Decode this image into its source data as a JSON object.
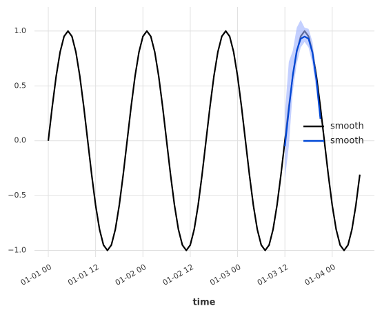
{
  "chart_data": {
    "type": "line",
    "x_label": "time",
    "x": [
      "01-01 00",
      "01-01 01",
      "01-01 02",
      "01-01 03",
      "01-01 04",
      "01-01 05",
      "01-01 06",
      "01-01 07",
      "01-01 08",
      "01-01 09",
      "01-01 10",
      "01-01 11",
      "01-01 12",
      "01-01 13",
      "01-01 14",
      "01-01 15",
      "01-01 16",
      "01-01 17",
      "01-01 18",
      "01-01 19",
      "01-01 20",
      "01-01 21",
      "01-01 22",
      "01-01 23",
      "01-02 00",
      "01-02 01",
      "01-02 02",
      "01-02 03",
      "01-02 04",
      "01-02 05",
      "01-02 06",
      "01-02 07",
      "01-02 08",
      "01-02 09",
      "01-02 10",
      "01-02 11",
      "01-02 12",
      "01-02 13",
      "01-02 14",
      "01-02 15",
      "01-02 16",
      "01-02 17",
      "01-02 18",
      "01-02 19",
      "01-02 20",
      "01-02 21",
      "01-02 22",
      "01-02 23",
      "01-03 00",
      "01-03 01",
      "01-03 02",
      "01-03 03",
      "01-03 04",
      "01-03 05",
      "01-03 06",
      "01-03 07",
      "01-03 08",
      "01-03 09",
      "01-03 10",
      "01-03 11",
      "01-03 12",
      "01-03 13",
      "01-03 14",
      "01-03 15",
      "01-03 16",
      "01-03 17",
      "01-03 18",
      "01-03 19",
      "01-03 20",
      "01-03 21",
      "01-03 22",
      "01-03 23",
      "01-04 00",
      "01-04 01",
      "01-04 02",
      "01-04 03",
      "01-04 04",
      "01-04 05",
      "01-04 06",
      "01-04 07"
    ],
    "series": [
      {
        "name": "smooth",
        "color": "#000000",
        "values": [
          0,
          0.309,
          0.588,
          0.809,
          0.951,
          1,
          0.951,
          0.809,
          0.588,
          0.309,
          0,
          -0.309,
          -0.588,
          -0.809,
          -0.951,
          -1,
          -0.951,
          -0.809,
          -0.588,
          -0.309,
          0,
          0.309,
          0.588,
          0.809,
          0.951,
          1,
          0.951,
          0.809,
          0.588,
          0.309,
          0,
          -0.309,
          -0.588,
          -0.809,
          -0.951,
          -1,
          -0.951,
          -0.809,
          -0.588,
          -0.309,
          0,
          0.309,
          0.588,
          0.809,
          0.951,
          1,
          0.951,
          0.809,
          0.588,
          0.309,
          0,
          -0.309,
          -0.588,
          -0.809,
          -0.951,
          -1,
          -0.951,
          -0.809,
          -0.588,
          -0.309,
          0,
          0.309,
          0.588,
          0.809,
          0.951,
          1,
          0.951,
          0.809,
          0.588,
          0.309,
          0,
          -0.309,
          -0.588,
          -0.809,
          -0.951,
          -1,
          -0.951,
          -0.809,
          -0.588,
          -0.309
        ]
      },
      {
        "name": "smooth",
        "color": "#0047d6",
        "band_color": "#9db0ff",
        "x": [
          "01-03 12",
          "01-03 13",
          "01-03 14",
          "01-03 15",
          "01-03 16",
          "01-03 17",
          "01-03 18",
          "01-03 19",
          "01-03 20",
          "01-03 21"
        ],
        "values": [
          -0.05,
          0.28,
          0.6,
          0.82,
          0.93,
          0.95,
          0.93,
          0.8,
          0.55,
          0.2
        ],
        "lower": [
          -0.35,
          -0.05,
          0.45,
          0.7,
          0.85,
          0.9,
          0.85,
          0.7,
          0.45,
          0.15
        ],
        "upper": [
          0.25,
          0.72,
          0.82,
          1.03,
          1.1,
          1.03,
          1.02,
          0.9,
          0.6,
          0.22
        ]
      }
    ],
    "ylim": [
      -1.06,
      1.22
    ],
    "yticks": [
      {
        "value": -1,
        "label": "−1.0"
      },
      {
        "value": -0.5,
        "label": "−0.5"
      },
      {
        "value": 0,
        "label": "0.0"
      },
      {
        "value": 0.5,
        "label": "0.5"
      },
      {
        "value": 1,
        "label": "1.0"
      }
    ],
    "xticks": [
      "01-01 00",
      "01-01 12",
      "01-02 00",
      "01-02 12",
      "01-03 00",
      "01-03 12",
      "01-04 00"
    ],
    "grid": true,
    "legend": "right"
  }
}
